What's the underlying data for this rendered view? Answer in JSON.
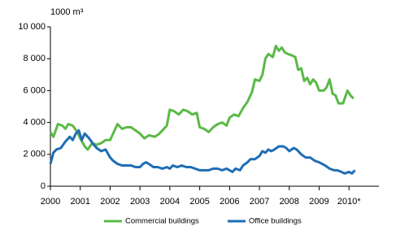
{
  "chart_data": {
    "type": "line",
    "y_label": "1000 m³",
    "xlim": [
      2000,
      2011
    ],
    "xticks": [
      2000,
      2001,
      2002,
      2003,
      2004,
      2005,
      2006,
      2007,
      2008,
      2009,
      {
        "value": 2010,
        "label": "2010*"
      }
    ],
    "ylim": [
      0,
      10000
    ],
    "yticks": [
      0,
      {
        "value": 2000,
        "label": "2 000"
      },
      {
        "value": 4000,
        "label": "4 000"
      },
      {
        "value": 6000,
        "label": "6 000"
      },
      {
        "value": 8000,
        "label": "8 000"
      },
      {
        "value": 10000,
        "label": "10 000"
      }
    ],
    "grid": false,
    "legend": "bottom",
    "series": [
      {
        "name": "Commercial buildings",
        "color": "#5bb947",
        "x": [
          2000.0,
          2000.1,
          2000.25,
          2000.4,
          2000.5,
          2000.6,
          2000.75,
          2000.9,
          2001.0,
          2001.15,
          2001.25,
          2001.4,
          2001.55,
          2001.7,
          2001.85,
          2002.0,
          2002.1,
          2002.25,
          2002.4,
          2002.55,
          2002.7,
          2002.85,
          2003.0,
          2003.15,
          2003.3,
          2003.5,
          2003.65,
          2003.8,
          2003.9,
          2004.0,
          2004.15,
          2004.3,
          2004.45,
          2004.6,
          2004.75,
          2004.9,
          2005.0,
          2005.15,
          2005.3,
          2005.45,
          2005.6,
          2005.75,
          2005.9,
          2006.0,
          2006.15,
          2006.3,
          2006.45,
          2006.6,
          2006.75,
          2006.85,
          2007.0,
          2007.1,
          2007.2,
          2007.3,
          2007.45,
          2007.55,
          2007.65,
          2007.75,
          2007.85,
          2007.95,
          2008.1,
          2008.2,
          2008.3,
          2008.4,
          2008.5,
          2008.6,
          2008.7,
          2008.8,
          2008.9,
          2009.0,
          2009.15,
          2009.25,
          2009.35,
          2009.45,
          2009.55,
          2009.65,
          2009.8,
          2009.95,
          2010.05,
          2010.15
        ],
        "values": [
          3400,
          3100,
          3900,
          3800,
          3600,
          3900,
          3800,
          3400,
          3000,
          2500,
          2300,
          2700,
          2600,
          2700,
          2900,
          2900,
          3300,
          3900,
          3600,
          3700,
          3700,
          3500,
          3300,
          3000,
          3200,
          3100,
          3300,
          3600,
          3800,
          4800,
          4700,
          4500,
          4800,
          4700,
          4500,
          4600,
          3700,
          3600,
          3400,
          3700,
          3900,
          4000,
          3800,
          4300,
          4500,
          4400,
          4900,
          5300,
          5900,
          6700,
          6600,
          7000,
          8000,
          8300,
          8100,
          8800,
          8500,
          8700,
          8400,
          8300,
          8200,
          8100,
          7300,
          7400,
          6600,
          6800,
          6400,
          6700,
          6500,
          6000,
          6000,
          6200,
          6700,
          5800,
          5700,
          5200,
          5200,
          6000,
          5700,
          5500
        ]
      },
      {
        "name": "Office buildings",
        "color": "#1f6db5",
        "x": [
          2000.0,
          2000.1,
          2000.2,
          2000.35,
          2000.5,
          2000.65,
          2000.75,
          2000.85,
          2000.95,
          2001.05,
          2001.15,
          2001.3,
          2001.45,
          2001.55,
          2001.7,
          2001.85,
          2002.0,
          2002.1,
          2002.25,
          2002.4,
          2002.55,
          2002.7,
          2002.85,
          2003.0,
          2003.1,
          2003.2,
          2003.3,
          2003.45,
          2003.6,
          2003.75,
          2003.9,
          2004.0,
          2004.1,
          2004.25,
          2004.4,
          2004.55,
          2004.7,
          2004.85,
          2005.0,
          2005.15,
          2005.3,
          2005.45,
          2005.6,
          2005.75,
          2005.9,
          2006.0,
          2006.1,
          2006.2,
          2006.35,
          2006.45,
          2006.6,
          2006.7,
          2006.85,
          2007.0,
          2007.1,
          2007.2,
          2007.3,
          2007.4,
          2007.5,
          2007.65,
          2007.8,
          2007.9,
          2008.0,
          2008.15,
          2008.25,
          2008.4,
          2008.55,
          2008.7,
          2008.85,
          2009.0,
          2009.1,
          2009.2,
          2009.35,
          2009.5,
          2009.6,
          2009.75,
          2009.85,
          2010.0,
          2010.1,
          2010.2
        ],
        "values": [
          1400,
          2100,
          2300,
          2400,
          2800,
          3100,
          2900,
          3300,
          3500,
          2900,
          3300,
          3000,
          2600,
          2400,
          2200,
          2300,
          1800,
          1600,
          1400,
          1300,
          1300,
          1300,
          1200,
          1200,
          1400,
          1500,
          1400,
          1200,
          1200,
          1100,
          1200,
          1100,
          1300,
          1200,
          1300,
          1200,
          1200,
          1100,
          1000,
          1000,
          1000,
          1100,
          1100,
          1000,
          1100,
          1000,
          900,
          1100,
          1000,
          1300,
          1500,
          1700,
          1700,
          1900,
          2200,
          2100,
          2300,
          2200,
          2300,
          2500,
          2500,
          2400,
          2200,
          2400,
          2300,
          2000,
          1800,
          1800,
          1600,
          1500,
          1400,
          1300,
          1100,
          1000,
          1000,
          900,
          800,
          900,
          800,
          1000
        ]
      }
    ]
  }
}
